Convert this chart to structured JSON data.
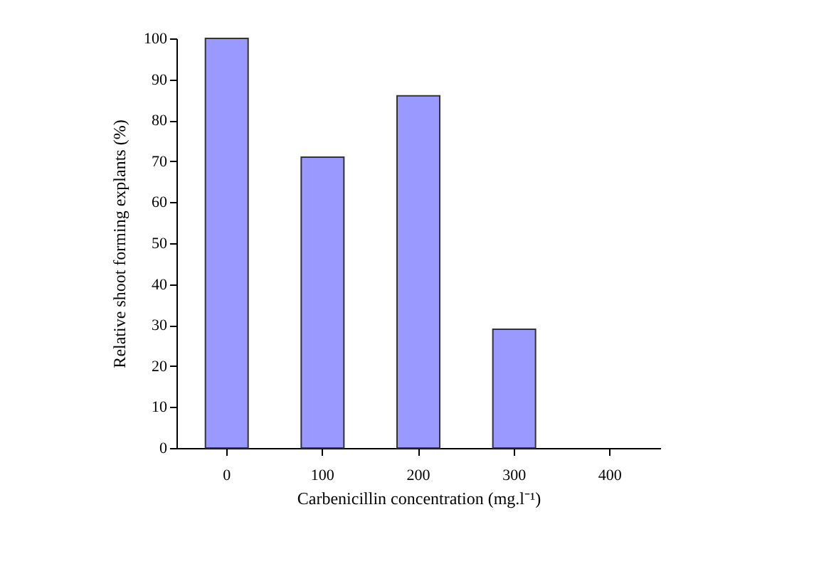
{
  "chart_data": {
    "type": "bar",
    "xlabel": "Carbenicillin concentration  (mg.l⁻¹)",
    "ylabel": "Relative shoot forming explants (%)",
    "categories": [
      "0",
      "100",
      "200",
      "300",
      "400"
    ],
    "values": [
      100,
      71,
      86,
      29,
      0
    ],
    "color": "#9999ff",
    "ylim": [
      0,
      100
    ],
    "yticks": [
      0,
      10,
      20,
      30,
      40,
      50,
      60,
      70,
      80,
      90,
      100
    ],
    "grid": false
  }
}
